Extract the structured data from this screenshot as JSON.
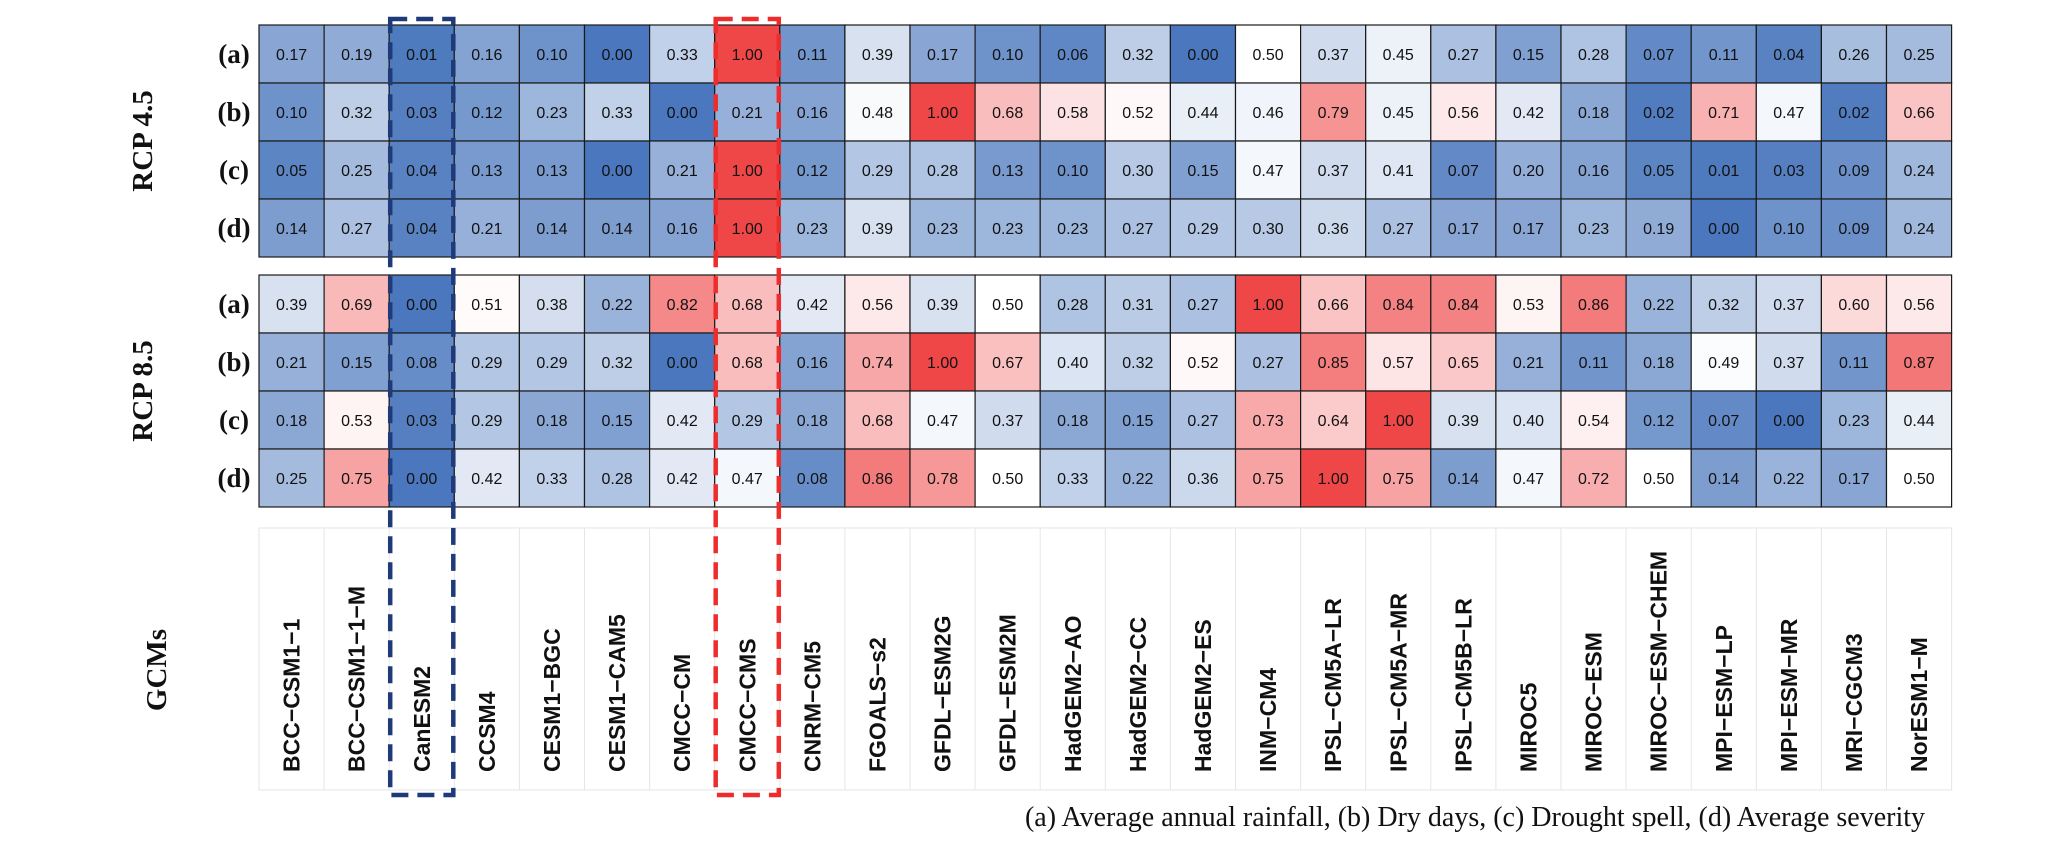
{
  "chart_data": {
    "type": "heatmap",
    "models": [
      "BCC−CSM1−1",
      "BCC−CSM1−1−M",
      "CanESM2",
      "CCSM4",
      "CESM1−BGC",
      "CESM1−CAM5",
      "CMCC−CM",
      "CMCC−CMS",
      "CNRM−CM5",
      "FGOALS−s2",
      "GFDL−ESM2G",
      "GFDL−ESM2M",
      "HadGEM2−AO",
      "HadGEM2−CC",
      "HadGEM2−ES",
      "INM−CM4",
      "IPSL−CM5A−LR",
      "IPSL−CM5A−MR",
      "IPSL−CM5B−LR",
      "MIROC5",
      "MIROC−ESM",
      "MIROC−ESM−CHEM",
      "MPI−ESM−LP",
      "MPI−ESM−MR",
      "MRI−CGCM3",
      "NorESM1−M"
    ],
    "models_axis_label": "GCMs",
    "groups": [
      {
        "name": "RCP 4.5",
        "rows": [
          {
            "label": "(a)",
            "values": [
              "0.17",
              "0.19",
              "0.01",
              "0.16",
              "0.10",
              "0.00",
              "0.33",
              "1.00",
              "0.11",
              "0.39",
              "0.17",
              "0.10",
              "0.06",
              "0.32",
              "0.00",
              "0.50",
              "0.37",
              "0.45",
              "0.27",
              "0.15",
              "0.28",
              "0.07",
              "0.11",
              "0.04",
              "0.26",
              "0.25"
            ]
          },
          {
            "label": "(b)",
            "values": [
              "0.10",
              "0.32",
              "0.03",
              "0.12",
              "0.23",
              "0.33",
              "0.00",
              "0.21",
              "0.16",
              "0.48",
              "1.00",
              "0.68",
              "0.58",
              "0.52",
              "0.44",
              "0.46",
              "0.79",
              "0.45",
              "0.56",
              "0.42",
              "0.18",
              "0.02",
              "0.71",
              "0.47",
              "0.02",
              "0.66"
            ]
          },
          {
            "label": "(c)",
            "values": [
              "0.05",
              "0.25",
              "0.04",
              "0.13",
              "0.13",
              "0.00",
              "0.21",
              "1.00",
              "0.12",
              "0.29",
              "0.28",
              "0.13",
              "0.10",
              "0.30",
              "0.15",
              "0.47",
              "0.37",
              "0.41",
              "0.07",
              "0.20",
              "0.16",
              "0.05",
              "0.01",
              "0.03",
              "0.09",
              "0.24"
            ]
          },
          {
            "label": "(d)",
            "values": [
              "0.14",
              "0.27",
              "0.04",
              "0.21",
              "0.14",
              "0.14",
              "0.16",
              "1.00",
              "0.23",
              "0.39",
              "0.23",
              "0.23",
              "0.23",
              "0.27",
              "0.29",
              "0.30",
              "0.36",
              "0.27",
              "0.17",
              "0.17",
              "0.23",
              "0.19",
              "0.00",
              "0.10",
              "0.09",
              "0.24"
            ]
          }
        ]
      },
      {
        "name": "RCP 8.5",
        "rows": [
          {
            "label": "(a)",
            "values": [
              "0.39",
              "0.69",
              "0.00",
              "0.51",
              "0.38",
              "0.22",
              "0.82",
              "0.68",
              "0.42",
              "0.56",
              "0.39",
              "0.50",
              "0.28",
              "0.31",
              "0.27",
              "1.00",
              "0.66",
              "0.84",
              "0.84",
              "0.53",
              "0.86",
              "0.22",
              "0.32",
              "0.37",
              "0.60",
              "0.56"
            ]
          },
          {
            "label": "(b)",
            "values": [
              "0.21",
              "0.15",
              "0.08",
              "0.29",
              "0.29",
              "0.32",
              "0.00",
              "0.68",
              "0.16",
              "0.74",
              "1.00",
              "0.67",
              "0.40",
              "0.32",
              "0.52",
              "0.27",
              "0.85",
              "0.57",
              "0.65",
              "0.21",
              "0.11",
              "0.18",
              "0.49",
              "0.37",
              "0.11",
              "0.87"
            ]
          },
          {
            "label": "(c)",
            "values": [
              "0.18",
              "0.53",
              "0.03",
              "0.29",
              "0.18",
              "0.15",
              "0.42",
              "0.29",
              "0.18",
              "0.68",
              "0.47",
              "0.37",
              "0.18",
              "0.15",
              "0.27",
              "0.73",
              "0.64",
              "1.00",
              "0.39",
              "0.40",
              "0.54",
              "0.12",
              "0.07",
              "0.00",
              "0.23",
              "0.44"
            ]
          },
          {
            "label": "(d)",
            "values": [
              "0.25",
              "0.75",
              "0.00",
              "0.42",
              "0.33",
              "0.28",
              "0.42",
              "0.47",
              "0.08",
              "0.86",
              "0.78",
              "0.50",
              "0.33",
              "0.22",
              "0.36",
              "0.75",
              "1.00",
              "0.75",
              "0.14",
              "0.47",
              "0.72",
              "0.50",
              "0.14",
              "0.22",
              "0.17",
              "0.50"
            ]
          }
        ]
      }
    ],
    "highlights": [
      {
        "model": "CanESM2",
        "color": "#1f3a78"
      },
      {
        "model": "CMCC−CMS",
        "color": "#ee2c2c"
      }
    ],
    "color_scale": {
      "low": "#4a77bd",
      "mid": "#ffffff",
      "high": "#ef4747",
      "domain": [
        0,
        0.5,
        1
      ]
    },
    "legend_caption": "(a) Average annual rainfall, (b) Dry days, (c) Drought spell, (d) Average severity"
  }
}
